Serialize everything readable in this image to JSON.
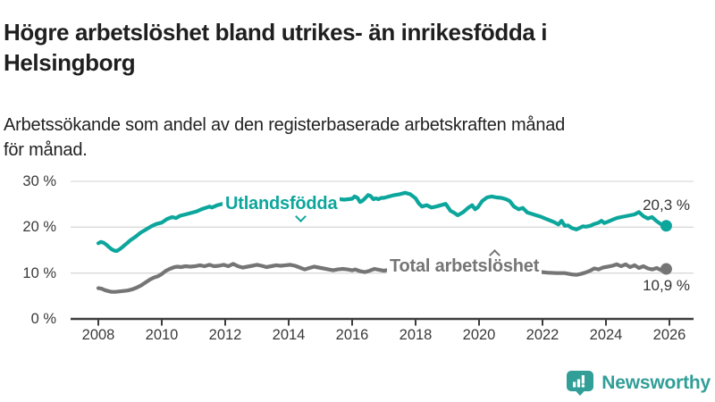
{
  "header": {
    "title_lines": [
      "Högre arbetslöshet bland utrikes- än inrikesfödda i",
      "Helsingborg"
    ],
    "subtitle_lines": [
      "Arbetssökande som andel av den registerbaserade arbetskraften månad",
      "för månad."
    ]
  },
  "footer": {
    "brand": "Newsworthy",
    "brand_color": "#319e97"
  },
  "chart_data": {
    "type": "line",
    "title": "Högre arbetslöshet bland utrikes- än inrikesfödda i Helsingborg",
    "subtitle": "Arbetssökande som andel av den registerbaserade arbetskraften månad för månad.",
    "grid": "horizontal-only",
    "legend_position": "inline-labels-on-lines",
    "colors": {
      "grid": "#d9d9d9",
      "axis": "#3c3c3c",
      "value_label": "#333333"
    },
    "x_axis": {
      "range": [
        2008,
        2026.3
      ],
      "ticks": [
        {
          "value": 2008,
          "label": "2008"
        },
        {
          "value": 2010,
          "label": "2010"
        },
        {
          "value": 2012,
          "label": "2012"
        },
        {
          "value": 2014,
          "label": "2014"
        },
        {
          "value": 2016,
          "label": "2016"
        },
        {
          "value": 2018,
          "label": "2018"
        },
        {
          "value": 2020,
          "label": "2020"
        },
        {
          "value": 2022,
          "label": "2022"
        },
        {
          "value": 2024,
          "label": "2024"
        },
        {
          "value": 2026,
          "label": "2026"
        }
      ]
    },
    "y_axis": {
      "range": [
        0,
        30
      ],
      "unit": "%",
      "ticks": [
        {
          "value": 30,
          "label": "30 %"
        },
        {
          "value": 20,
          "label": "20 %"
        },
        {
          "value": 10,
          "label": "10 %"
        },
        {
          "value": 0,
          "label": "0 %"
        }
      ]
    },
    "series": [
      {
        "id": "utlandsfodda",
        "name": "Utlandsfödda",
        "color": "#0ca69c",
        "end_value": 20.3,
        "end_label": "20,3 %",
        "points": [
          [
            2008.0,
            16.5
          ],
          [
            2008.08,
            16.8
          ],
          [
            2008.17,
            16.6
          ],
          [
            2008.25,
            16.2
          ],
          [
            2008.33,
            15.7
          ],
          [
            2008.42,
            15.2
          ],
          [
            2008.5,
            14.9
          ],
          [
            2008.58,
            14.8
          ],
          [
            2008.67,
            15.2
          ],
          [
            2008.75,
            15.6
          ],
          [
            2008.83,
            16.1
          ],
          [
            2008.92,
            16.6
          ],
          [
            2009.0,
            17.1
          ],
          [
            2009.17,
            17.9
          ],
          [
            2009.33,
            18.8
          ],
          [
            2009.5,
            19.5
          ],
          [
            2009.67,
            20.2
          ],
          [
            2009.83,
            20.7
          ],
          [
            2010.0,
            21.0
          ],
          [
            2010.17,
            21.8
          ],
          [
            2010.33,
            22.2
          ],
          [
            2010.45,
            22.0
          ],
          [
            2010.58,
            22.5
          ],
          [
            2010.75,
            22.8
          ],
          [
            2010.92,
            23.1
          ],
          [
            2011.08,
            23.4
          ],
          [
            2011.25,
            23.9
          ],
          [
            2011.42,
            24.3
          ],
          [
            2011.5,
            24.5
          ],
          [
            2011.58,
            24.3
          ],
          [
            2011.75,
            24.8
          ],
          [
            2011.92,
            25.1
          ],
          [
            2012.0,
            25.3
          ],
          [
            2012.08,
            25.9
          ],
          [
            2012.17,
            25.6
          ],
          [
            2012.33,
            25.7
          ],
          [
            2012.5,
            25.9
          ],
          [
            2012.67,
            25.8
          ],
          [
            2012.83,
            26.0
          ],
          [
            2013.0,
            25.8
          ],
          [
            2013.25,
            26.1
          ],
          [
            2013.5,
            25.9
          ],
          [
            2013.75,
            26.2
          ],
          [
            2014.0,
            26.0
          ],
          [
            2014.25,
            26.2
          ],
          [
            2014.5,
            26.0
          ],
          [
            2014.75,
            26.3
          ],
          [
            2015.0,
            26.1
          ],
          [
            2015.25,
            25.9
          ],
          [
            2015.5,
            26.2
          ],
          [
            2015.75,
            26.0
          ],
          [
            2016.0,
            26.2
          ],
          [
            2016.08,
            26.7
          ],
          [
            2016.17,
            26.4
          ],
          [
            2016.25,
            25.5
          ],
          [
            2016.33,
            25.8
          ],
          [
            2016.42,
            26.4
          ],
          [
            2016.5,
            27.0
          ],
          [
            2016.58,
            26.8
          ],
          [
            2016.67,
            26.1
          ],
          [
            2016.75,
            26.3
          ],
          [
            2016.83,
            26.1
          ],
          [
            2016.92,
            26.4
          ],
          [
            2017.0,
            26.4
          ],
          [
            2017.17,
            26.7
          ],
          [
            2017.33,
            27.0
          ],
          [
            2017.5,
            27.2
          ],
          [
            2017.67,
            27.5
          ],
          [
            2017.83,
            27.2
          ],
          [
            2018.0,
            26.3
          ],
          [
            2018.1,
            25.2
          ],
          [
            2018.2,
            24.5
          ],
          [
            2018.35,
            24.8
          ],
          [
            2018.5,
            24.3
          ],
          [
            2018.65,
            24.5
          ],
          [
            2018.8,
            24.8
          ],
          [
            2018.95,
            25.1
          ],
          [
            2019.1,
            23.6
          ],
          [
            2019.2,
            23.2
          ],
          [
            2019.33,
            22.6
          ],
          [
            2019.5,
            23.3
          ],
          [
            2019.65,
            24.2
          ],
          [
            2019.78,
            24.8
          ],
          [
            2019.88,
            23.9
          ],
          [
            2019.97,
            24.4
          ],
          [
            2020.1,
            25.7
          ],
          [
            2020.25,
            26.5
          ],
          [
            2020.4,
            26.7
          ],
          [
            2020.55,
            26.5
          ],
          [
            2020.7,
            26.4
          ],
          [
            2020.85,
            26.1
          ],
          [
            2020.97,
            25.7
          ],
          [
            2021.1,
            24.5
          ],
          [
            2021.25,
            23.9
          ],
          [
            2021.38,
            24.2
          ],
          [
            2021.52,
            23.2
          ],
          [
            2021.66,
            22.9
          ],
          [
            2021.8,
            22.6
          ],
          [
            2021.94,
            22.3
          ],
          [
            2022.08,
            21.9
          ],
          [
            2022.22,
            21.5
          ],
          [
            2022.37,
            21.1
          ],
          [
            2022.5,
            20.6
          ],
          [
            2022.6,
            21.4
          ],
          [
            2022.7,
            20.3
          ],
          [
            2022.8,
            20.4
          ],
          [
            2022.93,
            19.8
          ],
          [
            2023.07,
            19.5
          ],
          [
            2023.16,
            19.8
          ],
          [
            2023.27,
            20.2
          ],
          [
            2023.36,
            20.1
          ],
          [
            2023.5,
            20.3
          ],
          [
            2023.63,
            20.7
          ],
          [
            2023.77,
            21.0
          ],
          [
            2023.86,
            21.4
          ],
          [
            2023.95,
            20.9
          ],
          [
            2024.06,
            21.2
          ],
          [
            2024.2,
            21.6
          ],
          [
            2024.34,
            22.0
          ],
          [
            2024.48,
            22.2
          ],
          [
            2024.62,
            22.4
          ],
          [
            2024.76,
            22.6
          ],
          [
            2024.9,
            22.8
          ],
          [
            2025.04,
            23.3
          ],
          [
            2025.18,
            22.4
          ],
          [
            2025.32,
            21.9
          ],
          [
            2025.45,
            22.2
          ],
          [
            2025.6,
            21.3
          ],
          [
            2025.75,
            20.6
          ],
          [
            2025.9,
            20.3
          ]
        ]
      },
      {
        "id": "total",
        "name": "Total arbetslöshet",
        "color": "#757575",
        "end_value": 10.9,
        "end_label": "10,9 %",
        "points": [
          [
            2008.0,
            6.7
          ],
          [
            2008.1,
            6.6
          ],
          [
            2008.2,
            6.3
          ],
          [
            2008.3,
            6.1
          ],
          [
            2008.42,
            5.9
          ],
          [
            2008.55,
            5.9
          ],
          [
            2008.67,
            6.0
          ],
          [
            2008.8,
            6.1
          ],
          [
            2008.92,
            6.2
          ],
          [
            2009.05,
            6.4
          ],
          [
            2009.2,
            6.8
          ],
          [
            2009.35,
            7.3
          ],
          [
            2009.5,
            8.0
          ],
          [
            2009.63,
            8.6
          ],
          [
            2009.75,
            9.0
          ],
          [
            2009.88,
            9.3
          ],
          [
            2010.0,
            9.8
          ],
          [
            2010.13,
            10.5
          ],
          [
            2010.25,
            10.9
          ],
          [
            2010.4,
            11.3
          ],
          [
            2010.5,
            11.4
          ],
          [
            2010.6,
            11.3
          ],
          [
            2010.75,
            11.5
          ],
          [
            2010.9,
            11.4
          ],
          [
            2011.05,
            11.5
          ],
          [
            2011.2,
            11.7
          ],
          [
            2011.35,
            11.5
          ],
          [
            2011.5,
            11.8
          ],
          [
            2011.65,
            11.5
          ],
          [
            2011.8,
            11.6
          ],
          [
            2011.95,
            11.8
          ],
          [
            2012.1,
            11.5
          ],
          [
            2012.25,
            12.0
          ],
          [
            2012.4,
            11.5
          ],
          [
            2012.55,
            11.2
          ],
          [
            2012.7,
            11.4
          ],
          [
            2012.85,
            11.6
          ],
          [
            2013.0,
            11.8
          ],
          [
            2013.15,
            11.6
          ],
          [
            2013.3,
            11.3
          ],
          [
            2013.45,
            11.5
          ],
          [
            2013.6,
            11.7
          ],
          [
            2013.75,
            11.6
          ],
          [
            2013.9,
            11.7
          ],
          [
            2014.05,
            11.8
          ],
          [
            2014.2,
            11.6
          ],
          [
            2014.35,
            11.2
          ],
          [
            2014.5,
            10.8
          ],
          [
            2014.65,
            11.1
          ],
          [
            2014.8,
            11.4
          ],
          [
            2014.95,
            11.2
          ],
          [
            2015.1,
            11.0
          ],
          [
            2015.25,
            10.8
          ],
          [
            2015.4,
            10.6
          ],
          [
            2015.55,
            10.8
          ],
          [
            2015.7,
            10.9
          ],
          [
            2015.85,
            10.8
          ],
          [
            2016.0,
            10.6
          ],
          [
            2016.1,
            10.8
          ],
          [
            2016.25,
            10.4
          ],
          [
            2016.4,
            10.2
          ],
          [
            2016.55,
            10.5
          ],
          [
            2016.7,
            10.9
          ],
          [
            2016.85,
            10.7
          ],
          [
            2017.0,
            10.5
          ],
          [
            2017.15,
            10.7
          ],
          [
            2017.35,
            10.4
          ],
          [
            2017.6,
            10.2
          ],
          [
            2017.8,
            10.1
          ],
          [
            2018.0,
            10.0
          ],
          [
            2018.3,
            10.1
          ],
          [
            2018.6,
            9.9
          ],
          [
            2018.9,
            10.0
          ],
          [
            2019.2,
            10.1
          ],
          [
            2019.5,
            10.2
          ],
          [
            2019.8,
            10.4
          ],
          [
            2020.1,
            10.9
          ],
          [
            2020.4,
            11.5
          ],
          [
            2020.7,
            11.4
          ],
          [
            2020.95,
            11.2
          ],
          [
            2021.25,
            10.9
          ],
          [
            2021.55,
            10.6
          ],
          [
            2021.85,
            10.3
          ],
          [
            2022.15,
            10.1
          ],
          [
            2022.45,
            10.0
          ],
          [
            2022.7,
            10.0
          ],
          [
            2022.93,
            9.7
          ],
          [
            2023.07,
            9.6
          ],
          [
            2023.2,
            9.8
          ],
          [
            2023.35,
            10.1
          ],
          [
            2023.5,
            10.5
          ],
          [
            2023.63,
            11.0
          ],
          [
            2023.77,
            10.8
          ],
          [
            2023.9,
            11.2
          ],
          [
            2024.06,
            11.4
          ],
          [
            2024.2,
            11.6
          ],
          [
            2024.34,
            11.9
          ],
          [
            2024.48,
            11.5
          ],
          [
            2024.62,
            11.9
          ],
          [
            2024.76,
            11.3
          ],
          [
            2024.9,
            11.7
          ],
          [
            2025.04,
            11.1
          ],
          [
            2025.18,
            11.5
          ],
          [
            2025.32,
            11.0
          ],
          [
            2025.46,
            10.8
          ],
          [
            2025.6,
            11.1
          ],
          [
            2025.75,
            10.6
          ],
          [
            2025.9,
            10.9
          ]
        ]
      }
    ]
  }
}
